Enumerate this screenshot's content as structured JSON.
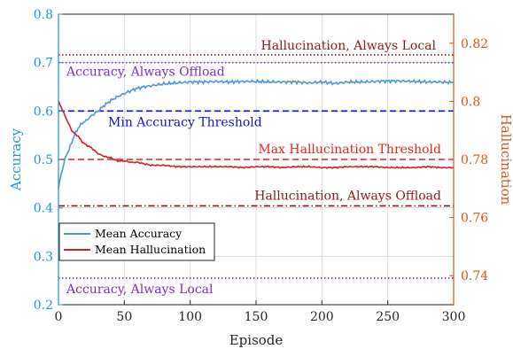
{
  "chart_data": {
    "type": "line",
    "xlabel": "Episode",
    "ylabel_left": "Accuracy",
    "ylabel_right": "Hallucination",
    "xlim": [
      0,
      300
    ],
    "ylim_left": [
      0.2,
      0.8
    ],
    "ylim_right": [
      0.73,
      0.83
    ],
    "x_ticks": [
      "0",
      "50",
      "100",
      "150",
      "200",
      "250",
      "300"
    ],
    "y_ticks_left": [
      "0.2",
      "0.3",
      "0.4",
      "0.5",
      "0.6",
      "0.7",
      "0.8"
    ],
    "y_ticks_right": [
      "0.74",
      "0.76",
      "0.78",
      "0.8",
      "0.82"
    ],
    "grid": true,
    "legend_position": "lower-left",
    "colors": {
      "accuracy": "#4e97d4",
      "hallucination": "#d32025",
      "left_axis": "#1f95d6",
      "right_axis": "#d9581a",
      "purple": "#7b2fbe",
      "blue": "#1212d6",
      "red": "#ee2020",
      "brown": "#8b1a1a"
    },
    "series": [
      {
        "name": "Mean Accuracy",
        "axis": "left",
        "x": [
          0,
          2,
          4,
          6,
          8,
          10,
          12,
          15,
          18,
          21,
          25,
          30,
          35,
          40,
          45,
          50,
          55,
          60,
          65,
          70,
          80,
          90,
          100,
          110,
          120,
          130,
          140,
          150,
          160,
          170,
          180,
          190,
          200,
          210,
          220,
          230,
          240,
          250,
          260,
          270,
          280,
          290,
          300
        ],
        "y": [
          0.44,
          0.47,
          0.49,
          0.51,
          0.52,
          0.535,
          0.55,
          0.565,
          0.575,
          0.58,
          0.59,
          0.6,
          0.612,
          0.622,
          0.63,
          0.636,
          0.642,
          0.647,
          0.65,
          0.652,
          0.656,
          0.658,
          0.66,
          0.66,
          0.661,
          0.66,
          0.661,
          0.661,
          0.66,
          0.66,
          0.66,
          0.658,
          0.66,
          0.657,
          0.66,
          0.66,
          0.661,
          0.662,
          0.662,
          0.661,
          0.66,
          0.66,
          0.659
        ]
      },
      {
        "name": "Mean Hallucination",
        "axis": "right",
        "x": [
          0,
          2,
          4,
          6,
          8,
          10,
          12,
          15,
          18,
          21,
          25,
          30,
          35,
          40,
          45,
          50,
          55,
          60,
          65,
          70,
          80,
          90,
          100,
          110,
          120,
          130,
          140,
          150,
          160,
          170,
          180,
          190,
          200,
          210,
          220,
          230,
          240,
          250,
          260,
          270,
          280,
          290,
          300
        ],
        "y": [
          0.8,
          0.798,
          0.796,
          0.794,
          0.792,
          0.79,
          0.789,
          0.788,
          0.786,
          0.785,
          0.784,
          0.782,
          0.781,
          0.7805,
          0.7795,
          0.7795,
          0.779,
          0.779,
          0.7785,
          0.778,
          0.778,
          0.7775,
          0.7775,
          0.7775,
          0.7775,
          0.7775,
          0.7772,
          0.7775,
          0.7775,
          0.7772,
          0.7775,
          0.7775,
          0.7772,
          0.7772,
          0.7775,
          0.7775,
          0.7775,
          0.7772,
          0.7772,
          0.7772,
          0.7775,
          0.7772,
          0.7772
        ]
      }
    ],
    "reference_lines": [
      {
        "label": "Hallucination, Always Local",
        "axis": "right",
        "value": 0.816,
        "style": "dotted",
        "color_key": "brown"
      },
      {
        "label": "Accuracy, Always Offload",
        "axis": "left",
        "value": 0.7,
        "style": "dotted",
        "color_key": "purple"
      },
      {
        "label": "Min Accuracy Threshold",
        "axis": "left",
        "value": 0.6,
        "style": "dashed",
        "color_key": "blue"
      },
      {
        "label": "Max Hallucination Threshold",
        "axis": "right",
        "value": 0.78,
        "style": "dashed",
        "color_key": "red"
      },
      {
        "label": "Hallucination, Always Offload",
        "axis": "right",
        "value": 0.764,
        "style": "dashdot",
        "color_key": "brown"
      },
      {
        "label": "Accuracy, Always Local",
        "axis": "left",
        "value": 0.255,
        "style": "dotted",
        "color_key": "purple"
      }
    ]
  }
}
